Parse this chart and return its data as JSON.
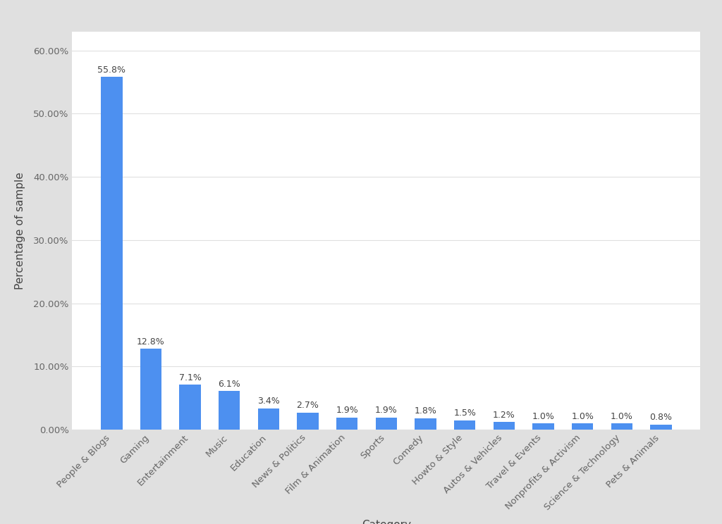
{
  "categories": [
    "People & Blogs",
    "Gaming",
    "Entertainment",
    "Music",
    "Education",
    "News & Politics",
    "Film & Animation",
    "Sports",
    "Comedy",
    "Howto & Style",
    "Autos & Vehicles",
    "Travel & Events",
    "Nonprofits & Activism",
    "Science & Technology",
    "Pets & Animals"
  ],
  "values": [
    55.8,
    12.8,
    7.1,
    6.1,
    3.4,
    2.7,
    1.9,
    1.9,
    1.8,
    1.5,
    1.2,
    1.0,
    1.0,
    1.0,
    0.8
  ],
  "bar_color": "#4d90f0",
  "xlabel": "Category",
  "ylabel": "Percentage of sample",
  "yticks": [
    0.0,
    10.0,
    20.0,
    30.0,
    40.0,
    50.0,
    60.0
  ],
  "ytick_labels": [
    "0.00%",
    "10.00%",
    "20.00%",
    "30.00%",
    "40.00%",
    "50.00%",
    "60.00%"
  ],
  "ylim": [
    0,
    63
  ],
  "background_color": "#ffffff",
  "frame_color": "#e0e0e0",
  "grid_color": "#e0e0e0",
  "label_fontsize": 11,
  "tick_fontsize": 9.5,
  "bar_label_fontsize": 9
}
